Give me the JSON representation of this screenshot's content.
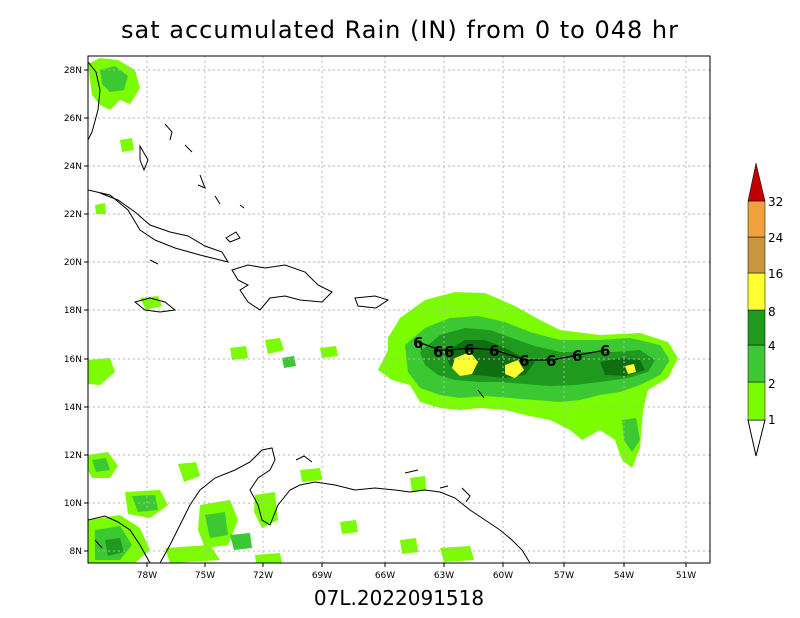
{
  "title": "sat accumulated Rain (IN) from 0 to 048 hr",
  "footer": "07L.2022091518",
  "axes": {
    "lat_labels": [
      "28N",
      "26N",
      "24N",
      "22N",
      "20N",
      "18N",
      "16N",
      "14N",
      "12N",
      "10N",
      "8N"
    ],
    "lon_labels": [
      "78W",
      "75W",
      "72W",
      "69W",
      "66W",
      "63W",
      "60W",
      "57W",
      "54W",
      "51W"
    ]
  },
  "colorbar": {
    "levels": [
      "1",
      "2",
      "4",
      "8",
      "16",
      "24",
      "32"
    ],
    "colors": [
      "#7cfc00",
      "#3cc832",
      "#1f9a1f",
      "#0f6e0f",
      "#ffff33",
      "#c8963c",
      "#f0a03c",
      "#c00000"
    ]
  },
  "storm_symbol": "6",
  "colors": {
    "rain_1": "#7cfc00",
    "rain_2": "#3cc832",
    "rain_4": "#1f9a1f",
    "rain_8": "#0f6e0f",
    "rain_16": "#ffff33",
    "coast": "#000000",
    "grid": "#b4b4b4"
  }
}
